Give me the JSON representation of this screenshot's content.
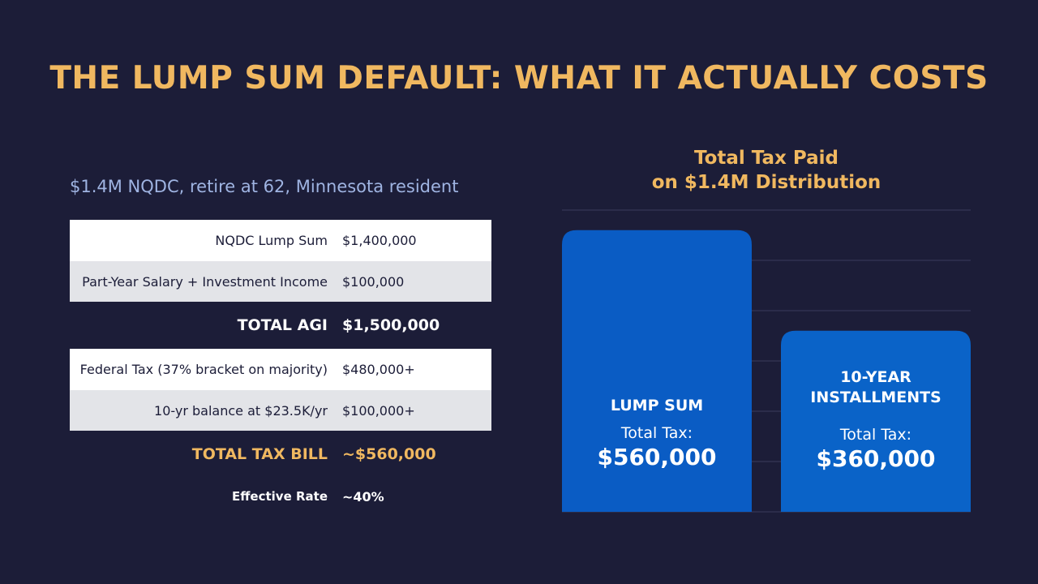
{
  "title": "THE LUMP SUM DEFAULT: WHAT IT ACTUALLY COSTS",
  "subtitle": "$1.4M NQDC, retire at 62, Minnesota resident",
  "table": {
    "rows": [
      {
        "label": "NQDC Lump Sum",
        "value": "$1,400,000"
      },
      {
        "label": "Part-Year Salary + Investment Income",
        "value": "$100,000"
      },
      {
        "label": "TOTAL AGI",
        "value": "$1,500,000"
      },
      {
        "label": "Federal Tax (37% bracket on majority)",
        "value": "$480,000+"
      },
      {
        "label": "10-yr balance at $23.5K/yr",
        "value": "$100,000+"
      },
      {
        "label": "TOTAL TAX BILL",
        "value": "~$560,000"
      },
      {
        "label": "Effective Rate",
        "value": "~40%"
      }
    ]
  },
  "colors": {
    "background": "#1c1d38",
    "accent": "#f0b860",
    "subtitle": "#9fb4e2",
    "bar_lump": "#0a5cc4",
    "bar_install": "#0a63c8",
    "grid": "#3a3c5c"
  },
  "chart_data": {
    "type": "bar",
    "title_line1": "Total Tax Paid",
    "title_line2": "on $1.4M Distribution",
    "categories": [
      "LUMP SUM",
      "10-YEAR INSTALLMENTS"
    ],
    "category_lines": [
      [
        "LUMP SUM"
      ],
      [
        "10-YEAR",
        "INSTALLMENTS"
      ]
    ],
    "values": [
      560000,
      360000
    ],
    "value_labels": [
      "$560,000",
      "$360,000"
    ],
    "sub_label": "Total Tax:",
    "ylim": [
      0,
      600000
    ],
    "grid": true,
    "xlabel": "",
    "ylabel": ""
  }
}
